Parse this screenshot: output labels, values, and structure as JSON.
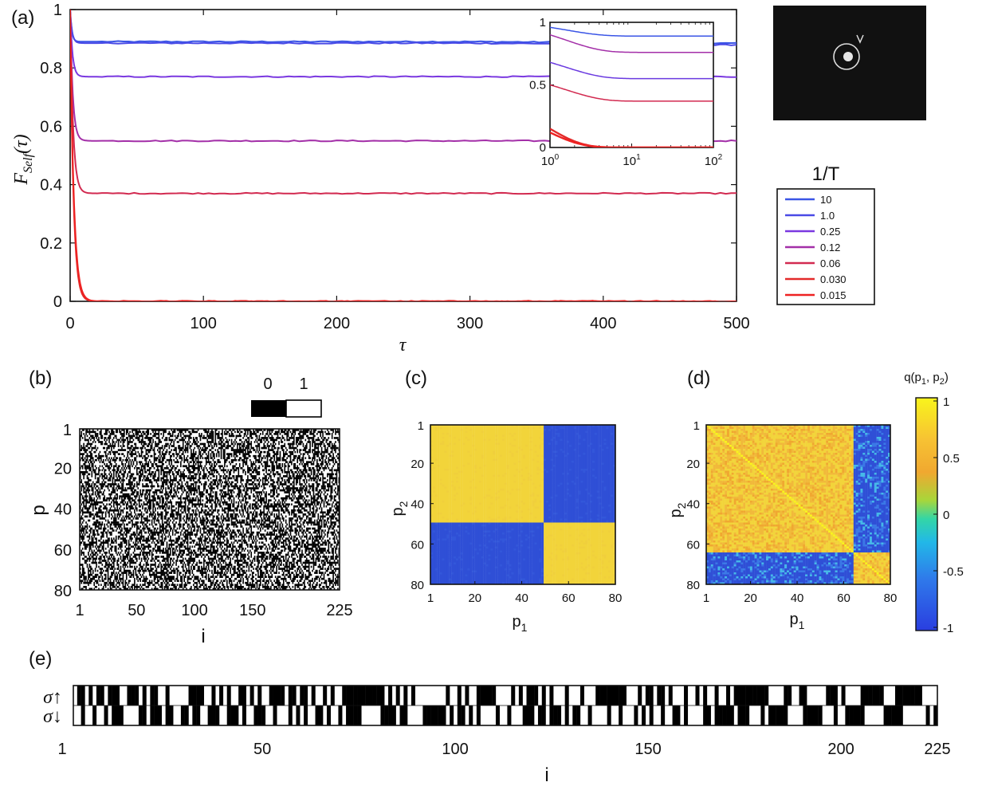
{
  "panels": {
    "a": "(a)",
    "b": "(b)",
    "c": "(c)",
    "d": "(d)",
    "e": "(e)"
  },
  "colors": {
    "blue": "#3a55e6",
    "purple": "#8a2bd6",
    "magenta": "#b0279a",
    "red": "#e32a2a",
    "hm_yellow": "#f2d43a",
    "hm_blue": "#2f4fd6",
    "hm_orange": "#f0a830"
  },
  "chart_data": [
    {
      "id": "a",
      "type": "line",
      "xlabel": "τ",
      "ylabel": "F_Self(τ)",
      "ylabel_main": "F",
      "ylabel_sub": "Self",
      "ylabel_tail": "(τ)",
      "xlim": [
        0,
        500
      ],
      "ylim": [
        0,
        1
      ],
      "xticks": [
        "0",
        "100",
        "200",
        "300",
        "400",
        "500"
      ],
      "yticks": [
        "0",
        "0.2",
        "0.4",
        "0.6",
        "0.8",
        "1"
      ],
      "legend_title": "1/T",
      "series": [
        {
          "name": "10",
          "plateau": 0.89,
          "color": "#3a55e6"
        },
        {
          "name": "1.0",
          "plateau": 0.885,
          "color": "#4a4ae6"
        },
        {
          "name": "0.25",
          "plateau": 0.77,
          "color": "#7a38e0"
        },
        {
          "name": "0.12",
          "plateau": 0.55,
          "color": "#a32fa8"
        },
        {
          "name": "0.06",
          "plateau": 0.37,
          "color": "#d22a50"
        },
        {
          "name": "0.030",
          "plateau": 0.0,
          "color": "#e32a2a"
        },
        {
          "name": "0.015",
          "plateau": 0.0,
          "color": "#ee2222"
        }
      ],
      "inset": {
        "type": "line",
        "xscale": "log",
        "xlim": [
          1,
          100
        ],
        "ylim": [
          0,
          1
        ],
        "xticks": [
          {
            "base": "10",
            "exp": "0"
          },
          {
            "base": "10",
            "exp": "1"
          },
          {
            "base": "10",
            "exp": "2"
          }
        ],
        "yticks": [
          "0",
          "0.5",
          "1"
        ],
        "series": [
          {
            "start": 0.96,
            "plateau": 0.89
          },
          {
            "start": 0.9,
            "plateau": 0.76
          },
          {
            "start": 0.68,
            "plateau": 0.55
          },
          {
            "start": 0.5,
            "plateau": 0.37
          },
          {
            "start": 0.15,
            "plateau": 0.0
          },
          {
            "start": 0.12,
            "plateau": 0.0
          }
        ]
      }
    },
    {
      "id": "b",
      "type": "heatmap",
      "xlabel": "i",
      "ylabel": "p",
      "xticks": [
        "1",
        "50",
        "100",
        "150",
        "225"
      ],
      "yticks": [
        "1",
        "20",
        "40",
        "60",
        "80"
      ],
      "colorbar_labels": [
        "0",
        "1"
      ],
      "n_rows": 80,
      "n_cols": 225
    },
    {
      "id": "c",
      "type": "heatmap",
      "xlabel": "p",
      "xlabel_sub": "1",
      "ylabel": "p",
      "ylabel_sub": "2",
      "xticks": [
        "1",
        "20",
        "40",
        "60",
        "80"
      ],
      "yticks": [
        "1",
        "20",
        "40",
        "60",
        "80"
      ],
      "block_split": 49
    },
    {
      "id": "d",
      "type": "heatmap",
      "xlabel": "p",
      "xlabel_sub": "1",
      "ylabel": "p",
      "ylabel_sub": "2",
      "xticks": [
        "1",
        "20",
        "40",
        "60",
        "80"
      ],
      "yticks": [
        "1",
        "20",
        "40",
        "60",
        "80"
      ],
      "block_split": 64,
      "colorbar_title": "q(p",
      "colorbar_title_sub1": "1",
      "colorbar_title_mid": ", p",
      "colorbar_title_sub2": "2",
      "colorbar_title_end": ")",
      "colorbar_ticks": [
        "1",
        "0.5",
        "0",
        "-0.5",
        "-1"
      ]
    },
    {
      "id": "e",
      "type": "heatmap",
      "xlabel": "i",
      "xticks": [
        "1",
        "50",
        "100",
        "150",
        "200",
        "225"
      ],
      "row_labels": [
        "σ↑",
        "σ↓"
      ],
      "n_cols": 225
    }
  ]
}
